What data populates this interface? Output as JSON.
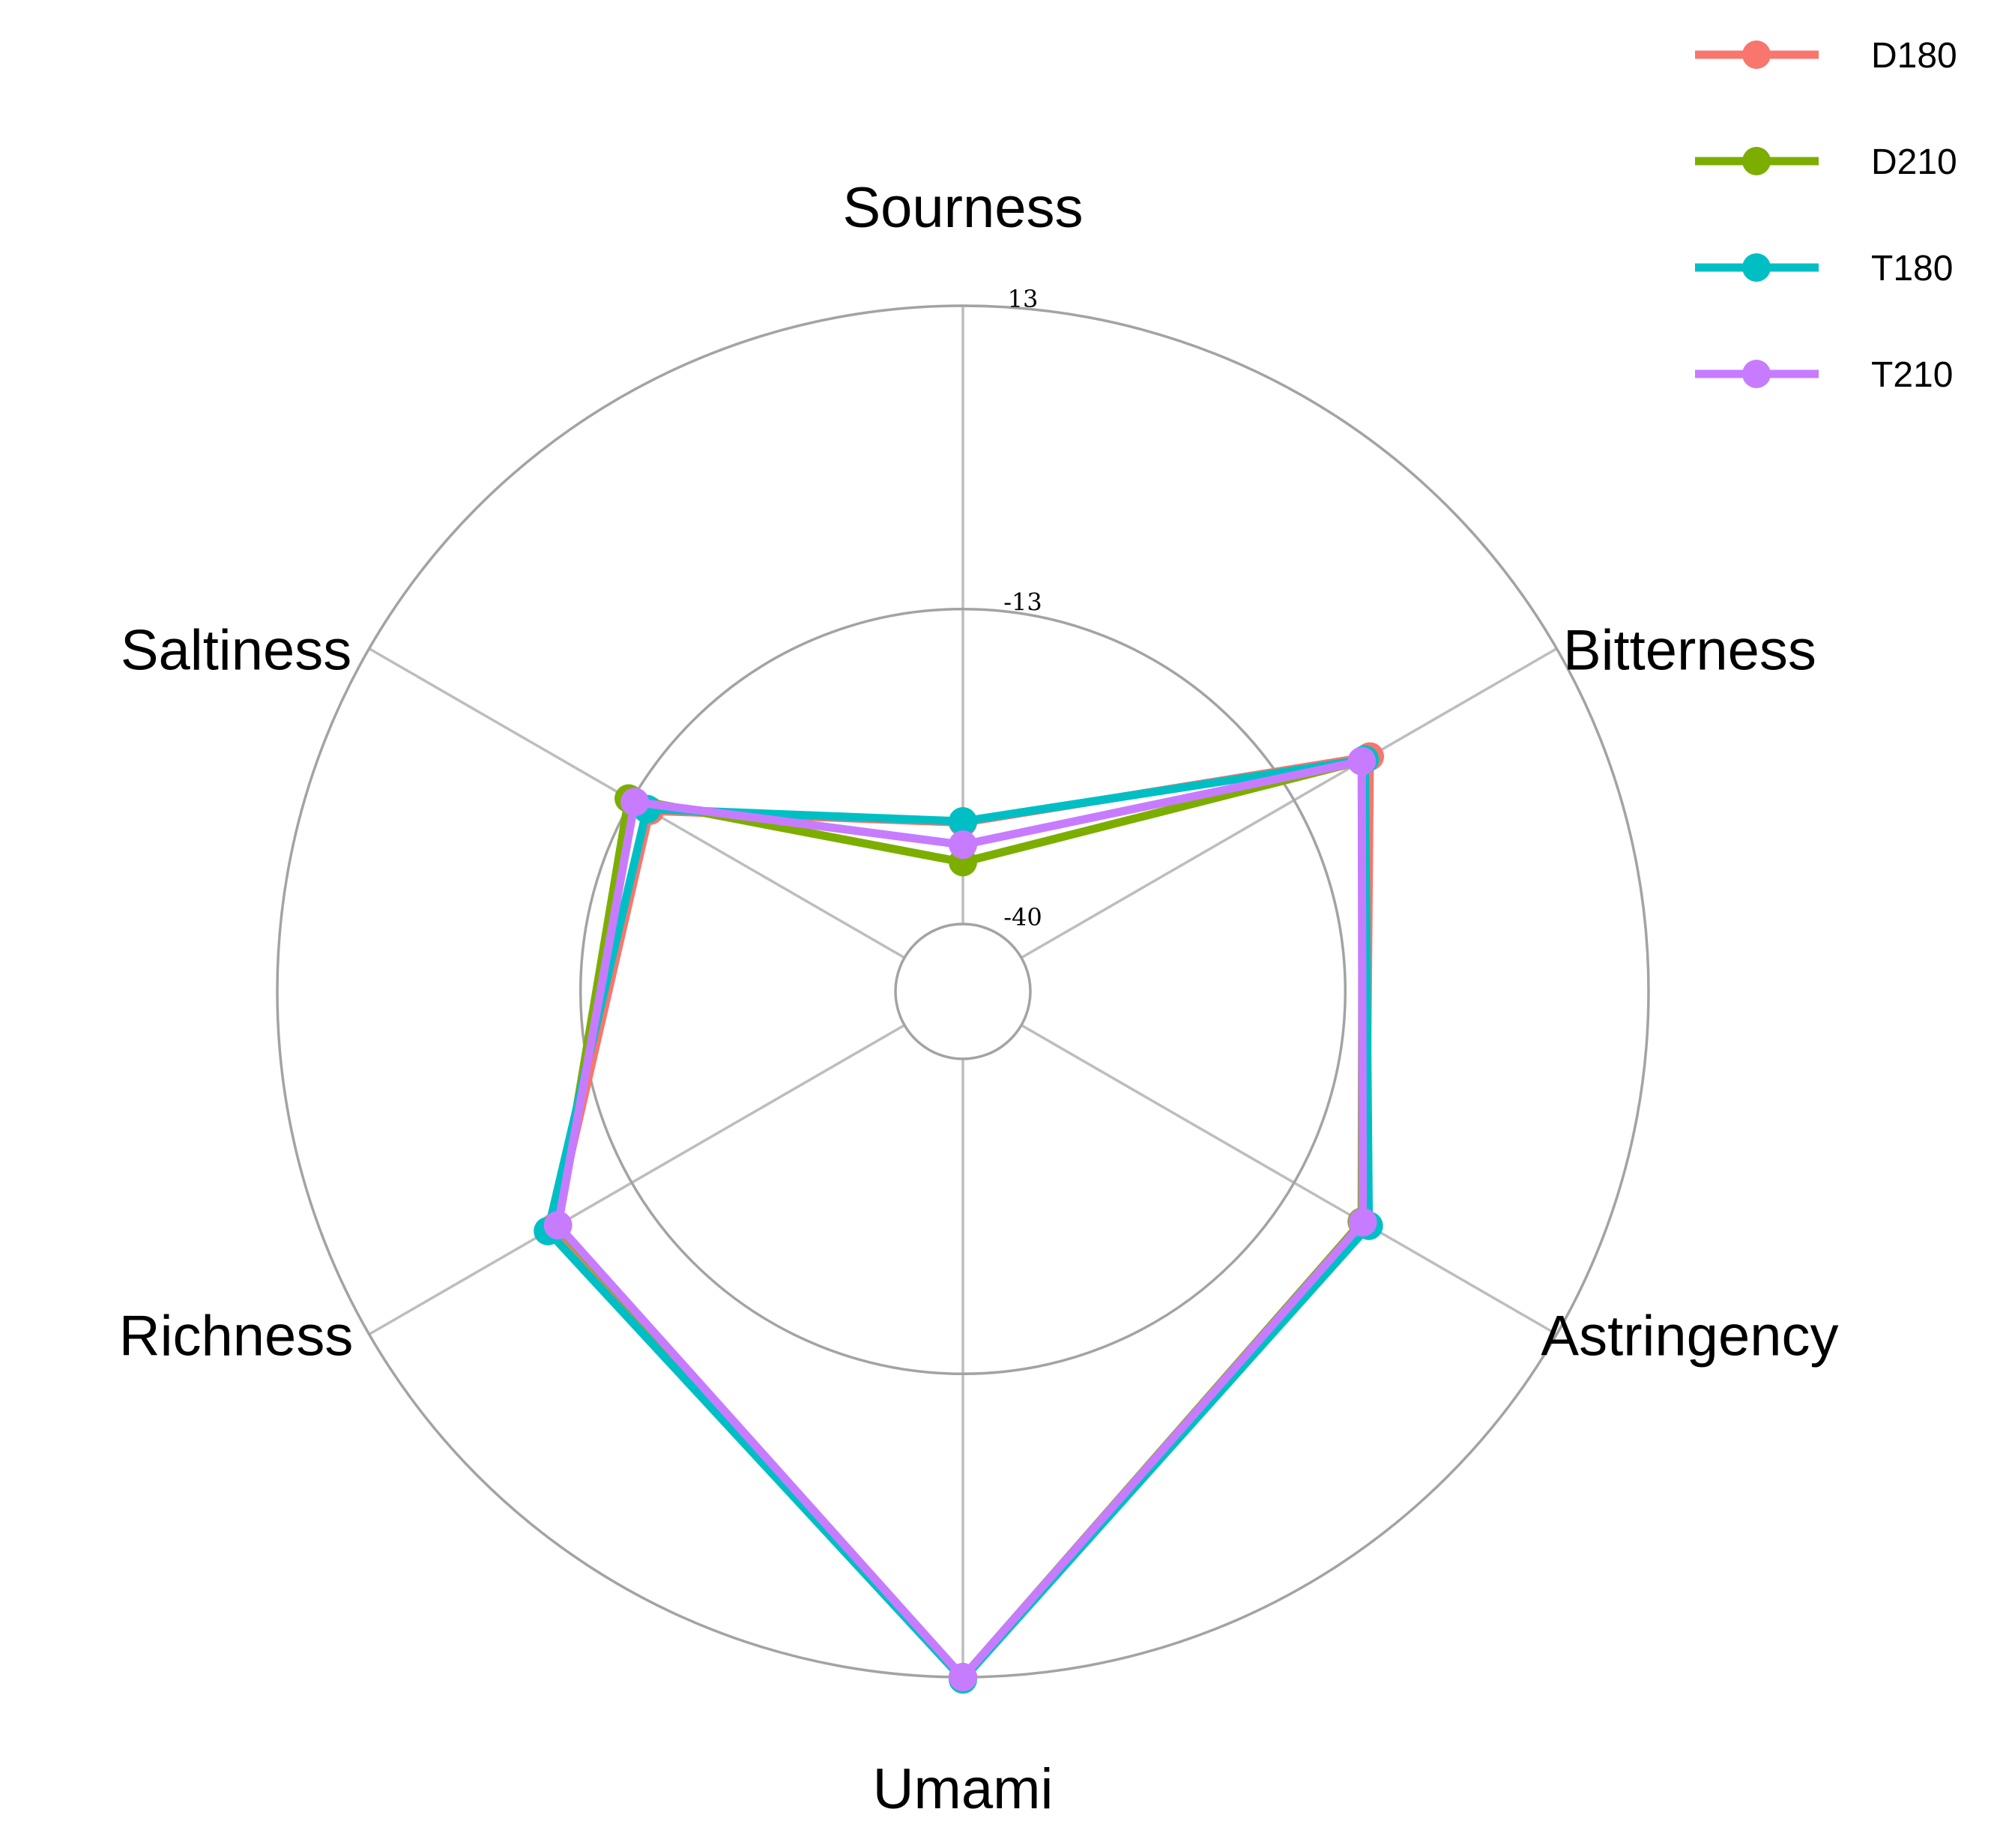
{
  "chart_data": {
    "type": "radar",
    "axes": [
      "Sourness",
      "Bitterness",
      "Astringency",
      "Umami",
      "Richness",
      "Saltiness"
    ],
    "rlim": [
      -40,
      13
    ],
    "ring_ticks": [
      13,
      -13,
      -40
    ],
    "ring_tick_labels": [
      "13",
      "-13",
      "-40"
    ],
    "grid": true,
    "legend_position": "top-right",
    "series": [
      {
        "name": "D180",
        "color": "#F8766D",
        "values": [
          -31.3,
          -5.5,
          -5.9,
          13.0,
          -5.3,
          -14.8
        ]
      },
      {
        "name": "D210",
        "color": "#7CAE00",
        "values": [
          -34.7,
          -6.2,
          -6.3,
          13.0,
          -5.6,
          -12.7
        ]
      },
      {
        "name": "T180",
        "color": "#00BFC4",
        "values": [
          -31.2,
          -6.0,
          -5.6,
          13.2,
          -4.7,
          -14.5
        ]
      },
      {
        "name": "T210",
        "color": "#C77CFF",
        "values": [
          -33.2,
          -6.3,
          -6.2,
          13.0,
          -5.7,
          -13.3
        ]
      }
    ]
  }
}
